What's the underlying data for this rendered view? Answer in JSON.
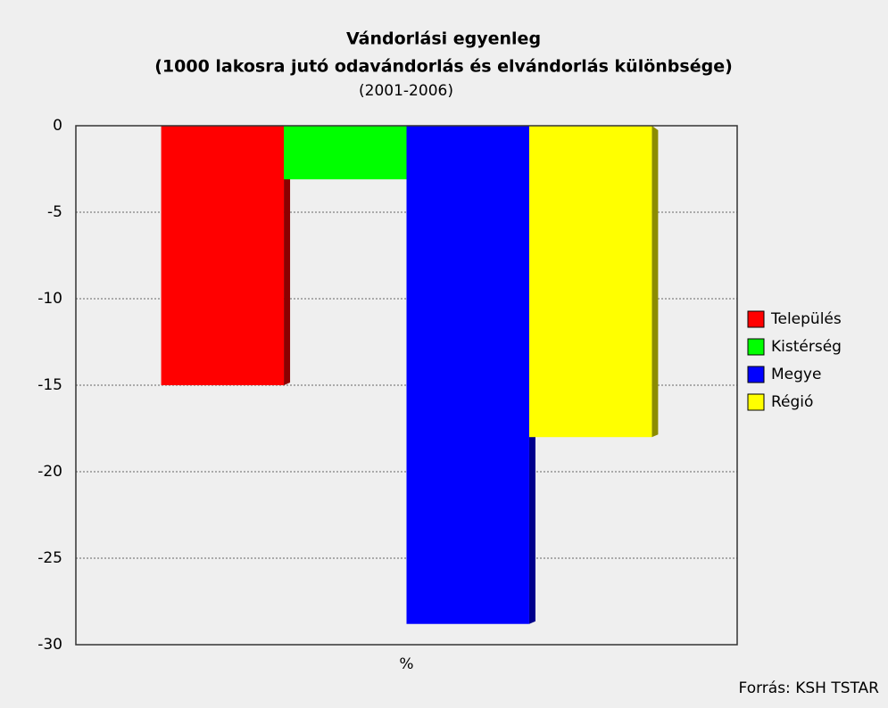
{
  "chart_data": {
    "type": "bar",
    "title": "Vándorlási egyenleg",
    "subtitle": "(1000 lakosra jutó odavándorlás és elvándorlás különbsége)",
    "period": "(2001-2006)",
    "source": "Forrás: KSH TSTAR",
    "categories": [
      "%"
    ],
    "series": [
      {
        "name": "Település",
        "color": "#ff0000",
        "values": [
          -15.0
        ]
      },
      {
        "name": "Kistérség",
        "color": "#00ff00",
        "values": [
          -3.1
        ]
      },
      {
        "name": "Megye",
        "color": "#0000ff",
        "values": [
          -28.8
        ]
      },
      {
        "name": "Régió",
        "color": "#ffff00",
        "values": [
          -18.0
        ]
      }
    ],
    "ylim": [
      -30,
      0
    ],
    "yticks": [
      0,
      -5,
      -10,
      -15,
      -20,
      -25,
      -30
    ],
    "grid": true,
    "legend": "right"
  }
}
